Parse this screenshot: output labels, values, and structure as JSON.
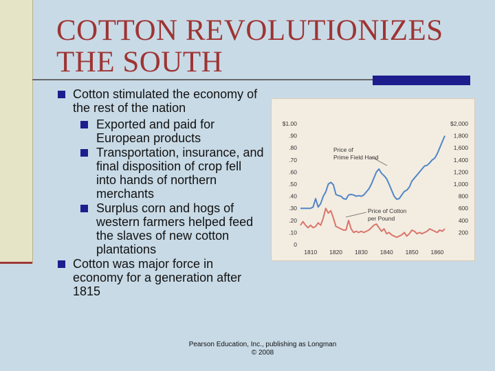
{
  "slide": {
    "title_line1": "COTTON REVOLUTIONIZES",
    "title_line2": "THE SOUTH",
    "bullets": [
      {
        "text": "Cotton stimulated the economy of the rest of the nation"
      },
      {
        "text": "Exported and paid for European products"
      },
      {
        "text": "Transportation, insurance, and final disposition of crop fell into hands of northern merchants"
      },
      {
        "text": "Surplus corn and hogs of western farmers helped feed the slaves of new cotton plantations"
      },
      {
        "text": "Cotton was major force in economy for a generation after 1815"
      }
    ],
    "credit_line1": "Pearson Education, Inc., publishing as Longman",
    "credit_line2": "© 2008"
  },
  "colors": {
    "title": "#9e3433",
    "bullet": "#1d1d8e",
    "field_hand_line": "#4f86c6",
    "cotton_line": "#d9746a"
  },
  "chart_data": {
    "type": "line",
    "title": "",
    "xlabel": "",
    "ylabel_left": "",
    "ylabel_right": "",
    "xlim": [
      1806,
      1863
    ],
    "x_ticks": [
      "1810",
      "1820",
      "1830",
      "1840",
      "1850",
      "1860"
    ],
    "left_axis": {
      "range": [
        0,
        1.0
      ],
      "ticks": [
        "$1.00",
        ".90",
        ".80",
        ".70",
        ".60",
        ".50",
        ".40",
        ".30",
        ".20",
        ".10",
        "0"
      ]
    },
    "right_axis": {
      "range": [
        0,
        2000
      ],
      "ticks": [
        "$2,000",
        "1,800",
        "1,600",
        "1,400",
        "1,200",
        "1,000",
        "800",
        "600",
        "400",
        "200"
      ]
    },
    "annotations": [
      {
        "text": "Price of Prime Field Hand",
        "series": "field_hand"
      },
      {
        "text": "Price of Cotton per Pound",
        "series": "cotton"
      }
    ],
    "series": [
      {
        "key": "field_hand",
        "axis": "right",
        "x": [
          1806,
          1807,
          1808,
          1809,
          1810,
          1811,
          1812,
          1813,
          1814,
          1815,
          1816,
          1817,
          1818,
          1819,
          1820,
          1821,
          1822,
          1823,
          1824,
          1825,
          1826,
          1827,
          1828,
          1829,
          1830,
          1831,
          1832,
          1833,
          1834,
          1835,
          1836,
          1837,
          1838,
          1839,
          1840,
          1841,
          1842,
          1843,
          1844,
          1845,
          1846,
          1847,
          1848,
          1849,
          1850,
          1851,
          1852,
          1853,
          1854,
          1855,
          1856,
          1857,
          1858,
          1859,
          1860,
          1861,
          1862,
          1863
        ],
        "y": [
          600,
          600,
          600,
          600,
          600,
          620,
          760,
          620,
          680,
          800,
          870,
          1000,
          1030,
          990,
          830,
          810,
          800,
          760,
          750,
          820,
          830,
          820,
          800,
          810,
          800,
          820,
          870,
          920,
          1000,
          1100,
          1200,
          1250,
          1180,
          1140,
          1090,
          1000,
          900,
          800,
          750,
          760,
          820,
          880,
          900,
          950,
          1050,
          1100,
          1150,
          1200,
          1250,
          1300,
          1310,
          1350,
          1400,
          1430,
          1500,
          1600,
          1700,
          1800
        ]
      },
      {
        "key": "cotton",
        "axis": "left",
        "x": [
          1806,
          1807,
          1808,
          1809,
          1810,
          1811,
          1812,
          1813,
          1814,
          1815,
          1816,
          1817,
          1818,
          1819,
          1820,
          1821,
          1822,
          1823,
          1824,
          1825,
          1826,
          1827,
          1828,
          1829,
          1830,
          1831,
          1832,
          1833,
          1834,
          1835,
          1836,
          1837,
          1838,
          1839,
          1840,
          1841,
          1842,
          1843,
          1844,
          1845,
          1846,
          1847,
          1848,
          1849,
          1850,
          1851,
          1852,
          1853,
          1854,
          1855,
          1856,
          1857,
          1858,
          1859,
          1860,
          1861,
          1862,
          1863
        ],
        "y": [
          0.16,
          0.19,
          0.16,
          0.14,
          0.16,
          0.14,
          0.15,
          0.18,
          0.16,
          0.22,
          0.3,
          0.26,
          0.28,
          0.22,
          0.15,
          0.14,
          0.13,
          0.12,
          0.12,
          0.2,
          0.13,
          0.1,
          0.11,
          0.1,
          0.11,
          0.1,
          0.11,
          0.12,
          0.14,
          0.16,
          0.17,
          0.14,
          0.11,
          0.13,
          0.09,
          0.1,
          0.08,
          0.07,
          0.06,
          0.07,
          0.08,
          0.1,
          0.07,
          0.09,
          0.12,
          0.11,
          0.09,
          0.1,
          0.09,
          0.1,
          0.11,
          0.13,
          0.12,
          0.11,
          0.1,
          0.12,
          0.11,
          0.13
        ]
      }
    ]
  }
}
